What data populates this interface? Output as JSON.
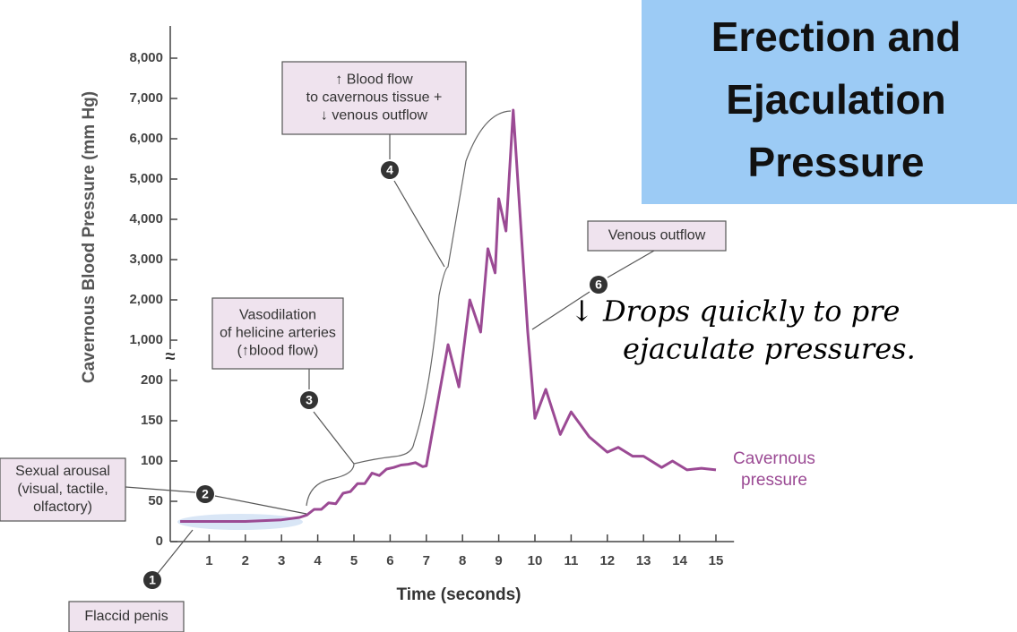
{
  "chart_data": {
    "type": "line",
    "title": "Erection and Ejaculation Pressure",
    "x_label": "Time (seconds)",
    "y_label": "Cavernous Blood Pressure (mm Hg)",
    "x": [
      0.2,
      1,
      2,
      3,
      3.5,
      3.7,
      3.9,
      4.1,
      4.3,
      4.5,
      4.7,
      4.9,
      5.1,
      5.3,
      5.5,
      5.7,
      5.9,
      6.1,
      6.3,
      6.5,
      6.7,
      6.9,
      7.0,
      7.6,
      7.9,
      8.2,
      8.5,
      8.7,
      8.9,
      9.0,
      9.2,
      9.4,
      9.8,
      10.0,
      10.3,
      10.7,
      11.0,
      11.5,
      12.0,
      12.3,
      12.7,
      13.0,
      13.5,
      13.8,
      14.2,
      14.6,
      15.0
    ],
    "series": [
      {
        "name": "Cavernous pressure",
        "color": "#9b4a94",
        "values": [
          25,
          25,
          25,
          27,
          30,
          33,
          40,
          40,
          48,
          47,
          60,
          62,
          72,
          72,
          85,
          82,
          90,
          92,
          95,
          96,
          98,
          93,
          94,
          911,
          192,
          2000,
          1200,
          3270,
          2670,
          4510,
          3710,
          6710,
          1220,
          153,
          189,
          133,
          161,
          130,
          111,
          117,
          106,
          106,
          92,
          100,
          89,
          91,
          89
        ]
      }
    ],
    "xlim": [
      0,
      15.5
    ],
    "xticks": [
      1,
      2,
      3,
      4,
      5,
      6,
      7,
      8,
      9,
      10,
      11,
      12,
      13,
      14,
      15
    ],
    "ylim": [
      0,
      8800
    ],
    "yticks": [
      0,
      50,
      100,
      150,
      200,
      {
        "value": 1000,
        "label": "1,000"
      },
      {
        "value": 2000,
        "label": "2,000"
      },
      {
        "value": 3000,
        "label": "3,000"
      },
      {
        "value": 4000,
        "label": "4,000"
      },
      {
        "value": 5000,
        "label": "5,000"
      },
      {
        "value": 6000,
        "label": "6,000"
      },
      {
        "value": 7000,
        "label": "7,000"
      },
      {
        "value": 8000,
        "label": "8,000"
      }
    ],
    "axis_break": "≈",
    "annotations": [
      {
        "number": 1,
        "lines": [
          "Flaccid penis"
        ]
      },
      {
        "number": 2,
        "lines": [
          "Sexual arousal",
          "(visual, tactile,",
          "olfactory)"
        ]
      },
      {
        "number": 3,
        "lines": [
          "Vasodilation",
          "of helicine arteries",
          "(↑blood flow)"
        ]
      },
      {
        "number": 4,
        "lines": [
          "↑ Blood flow",
          "to cavernous tissue +",
          "↓ venous outflow"
        ]
      },
      {
        "number": 6,
        "lines": [
          "Venous outflow"
        ]
      }
    ],
    "note": [
      "↓ Drops quickly to pre",
      "ejaculate  pressures."
    ]
  }
}
